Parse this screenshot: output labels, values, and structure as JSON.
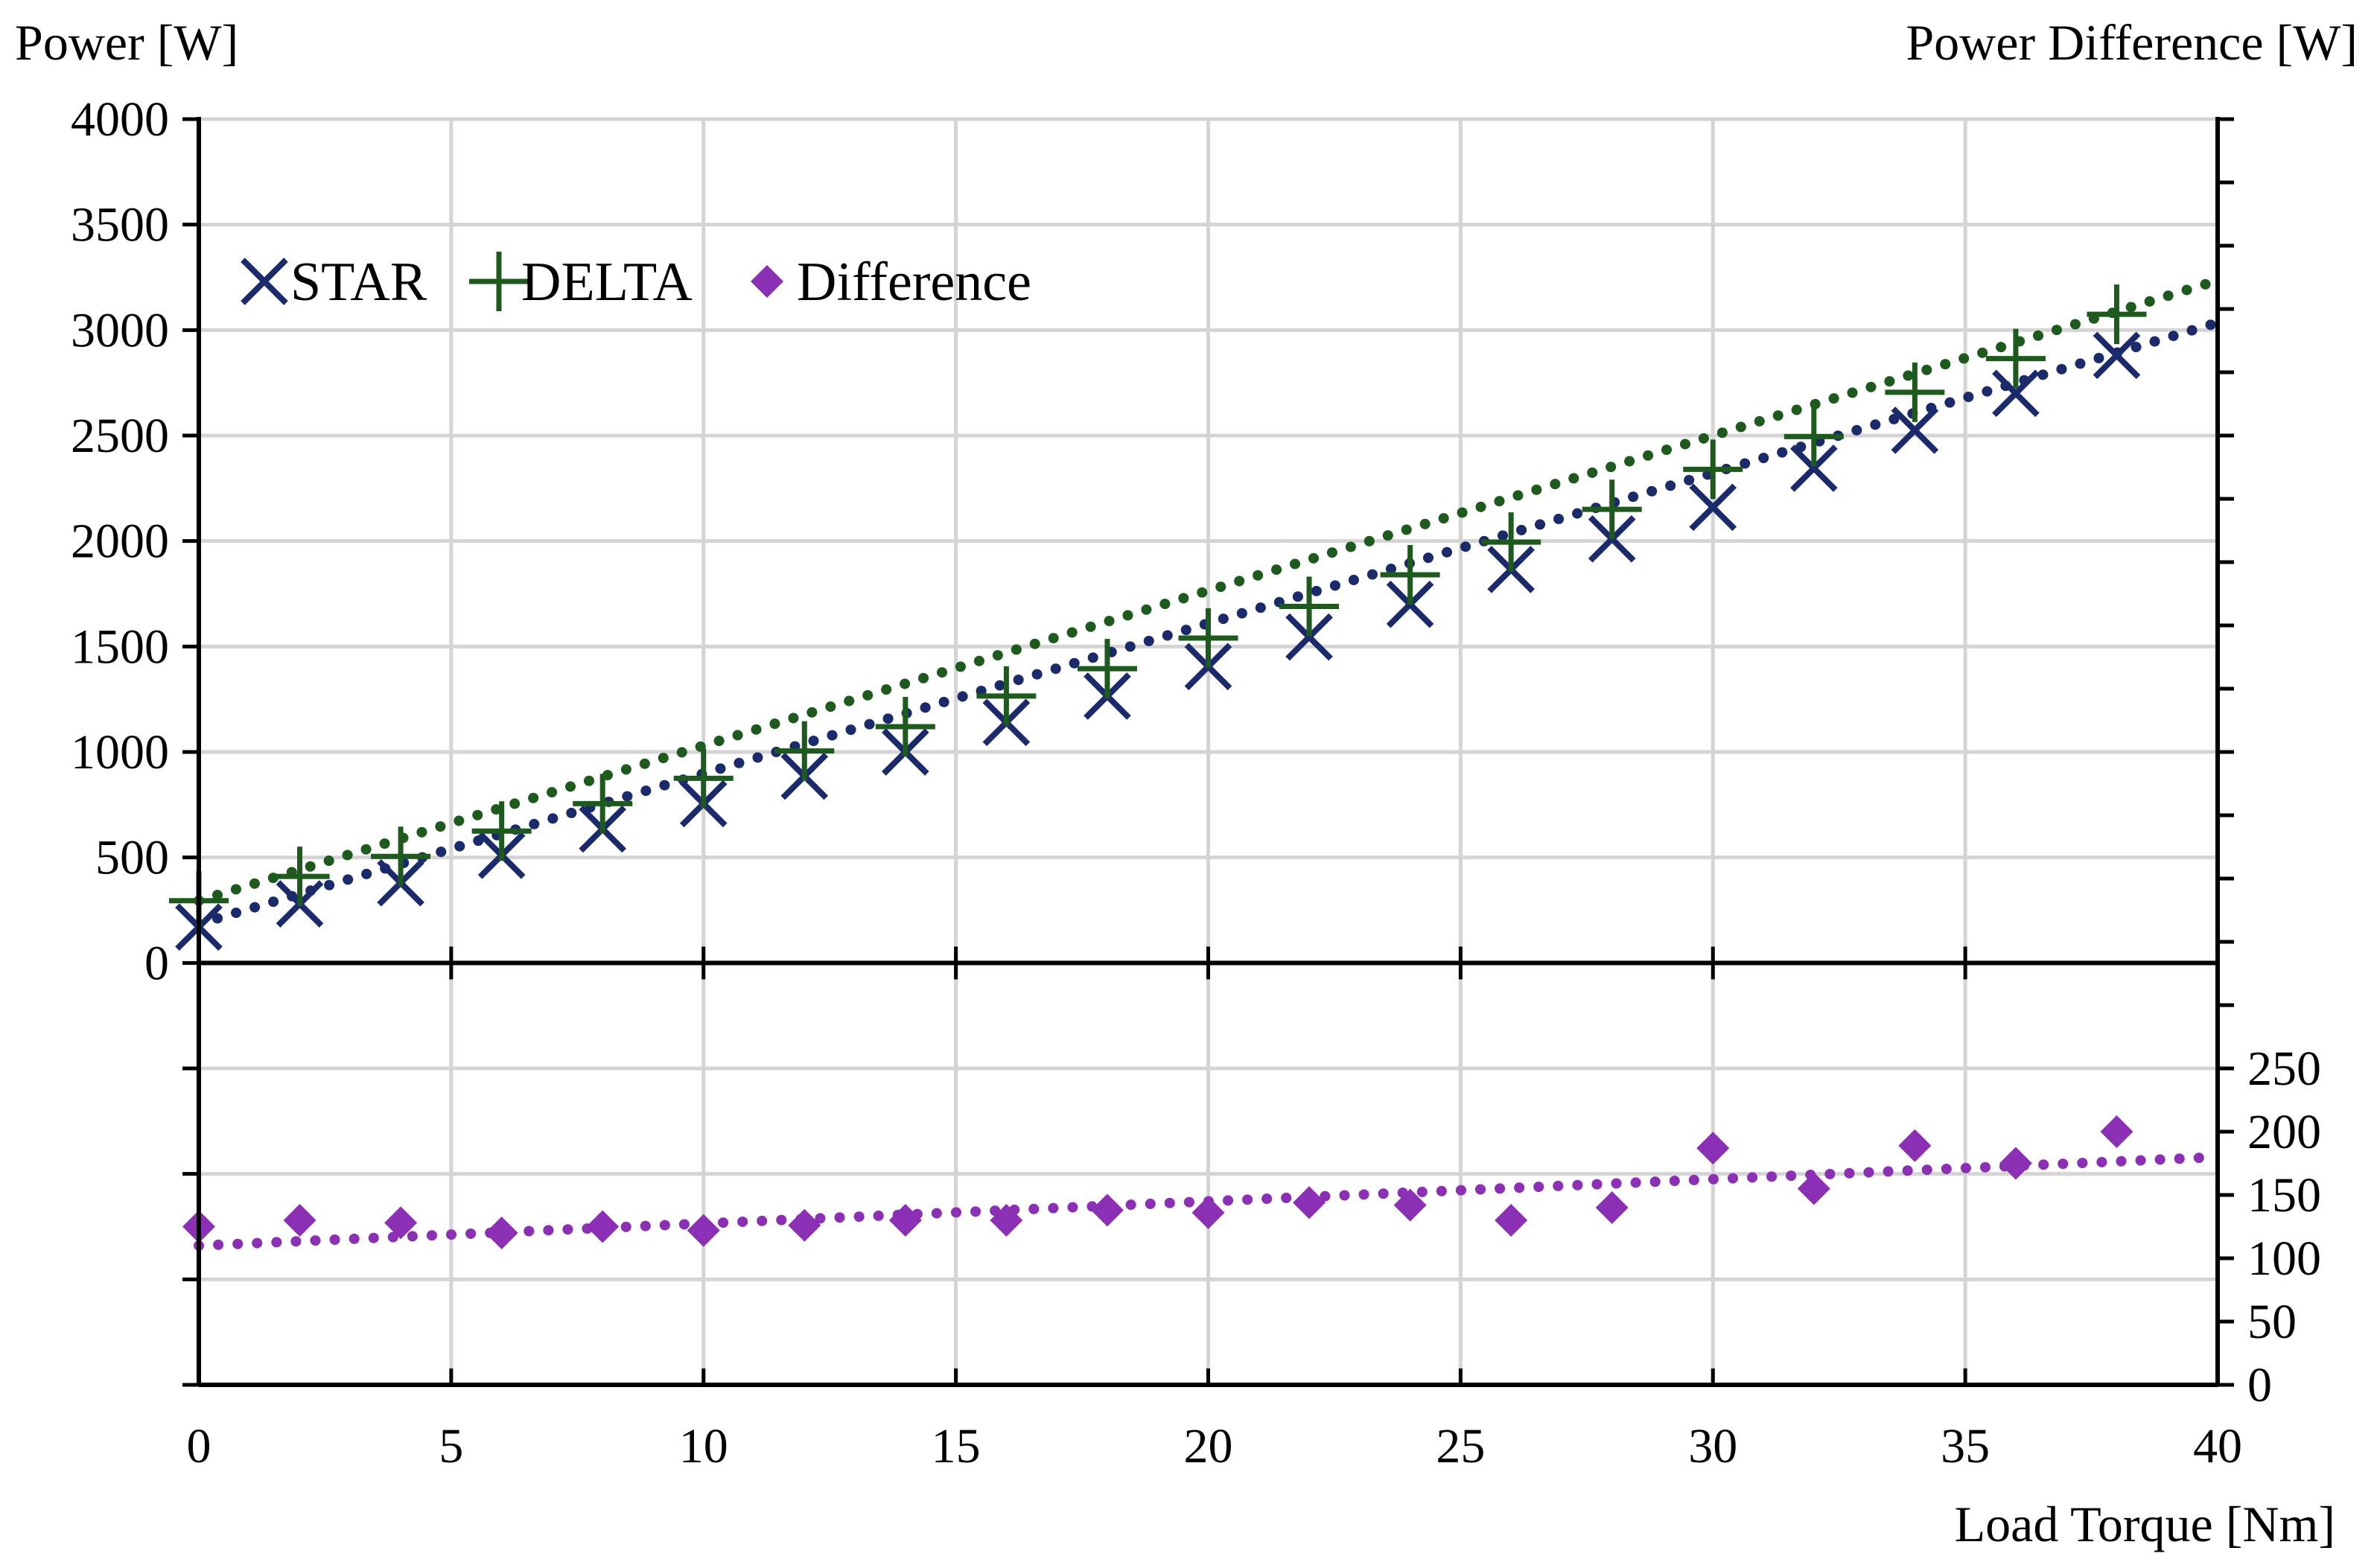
{
  "chart_data": {
    "type": "scatter",
    "title": "",
    "x": [
      0,
      2,
      4,
      6,
      8,
      10,
      12,
      14,
      16,
      18,
      20,
      22,
      24,
      26,
      28,
      30,
      32,
      34,
      36,
      38
    ],
    "xlabel": "Load Torque [Nm]",
    "xlim": [
      0,
      40
    ],
    "xticks": [
      "0",
      "5",
      "10",
      "15",
      "20",
      "25",
      "30",
      "35",
      "40"
    ],
    "ylabel_left": "Power [W]",
    "ylim_left": [
      -2000,
      4000
    ],
    "yticks_left": [
      "0",
      "500",
      "1000",
      "1500",
      "2000",
      "2500",
      "3000",
      "3500",
      "4000"
    ],
    "ylabel_right": "Power Difference [W]",
    "ylim_right": [
      0,
      1000
    ],
    "yticks_right": [
      "0",
      "50",
      "100",
      "150",
      "200",
      "250"
    ],
    "grid": true,
    "legend_position": "top-left",
    "series": [
      {
        "name": "STAR",
        "axis": "left",
        "marker": "x",
        "color": "#1b2a6b",
        "values": [
          170,
          280,
          380,
          510,
          635,
          755,
          885,
          1000,
          1140,
          1265,
          1405,
          1545,
          1700,
          1865,
          2010,
          2160,
          2345,
          2525,
          2700,
          2880
        ],
        "trendline": {
          "style": "dotted",
          "from": [
            0,
            185
          ],
          "to": [
            40,
            3035
          ]
        }
      },
      {
        "name": "DELTA",
        "axis": "left",
        "marker": "+",
        "color": "#1e5a1e",
        "values": [
          295,
          410,
          505,
          625,
          755,
          875,
          1005,
          1120,
          1265,
          1395,
          1540,
          1690,
          1840,
          1995,
          2150,
          2340,
          2495,
          2705,
          2865,
          3075
        ],
        "trendline": {
          "style": "dotted",
          "from": [
            0,
            295
          ],
          "to": [
            40,
            3235
          ]
        }
      },
      {
        "name": "Difference",
        "axis": "right",
        "marker": "diamond",
        "color": "#8b2fb5",
        "values": [
          125,
          130,
          128,
          120,
          125,
          122,
          126,
          130,
          130,
          138,
          136,
          144,
          142,
          130,
          140,
          187,
          155,
          189,
          175,
          200
        ],
        "trendline": {
          "style": "dotted",
          "from": [
            0,
            110
          ],
          "to": [
            40,
            180
          ]
        }
      }
    ]
  }
}
